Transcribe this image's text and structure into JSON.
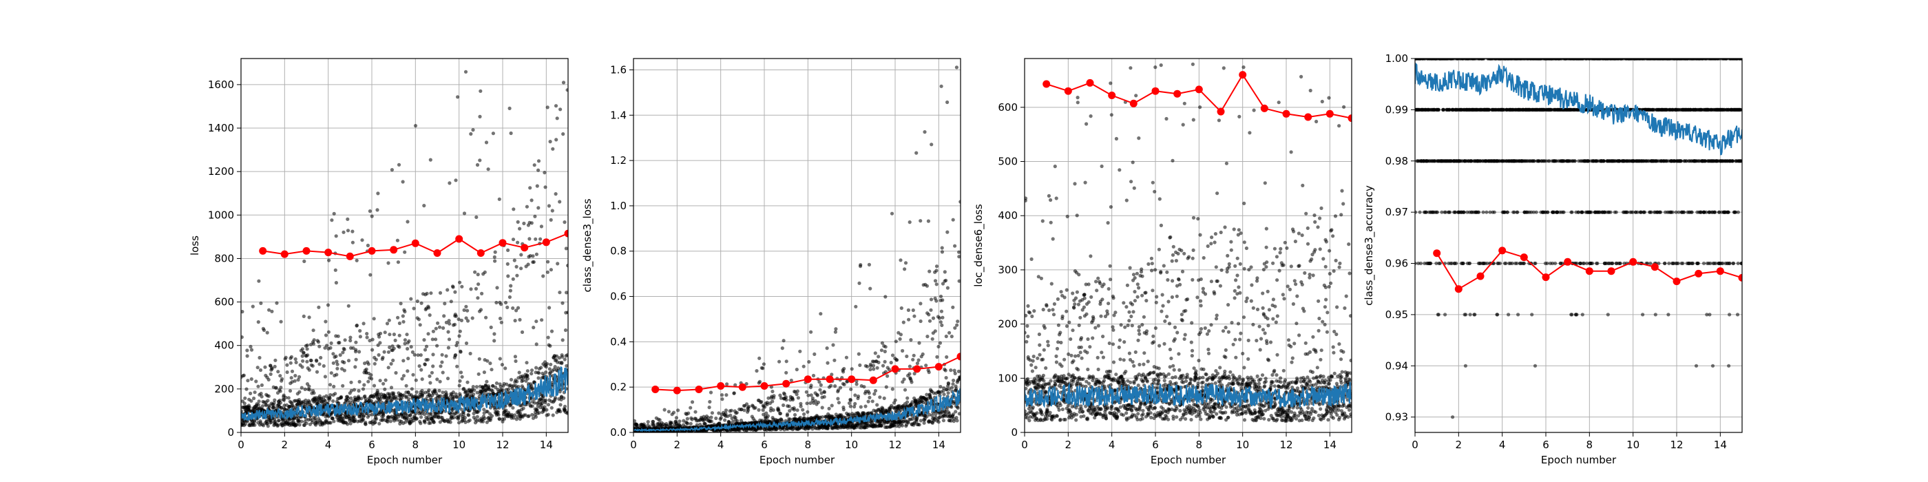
{
  "figure": {
    "colors": {
      "scatter": "#000000",
      "smoothed": "#1f77b4",
      "epoch_mean": "#ff0000",
      "grid": "#b0b0b0"
    }
  },
  "chart_data": [
    {
      "type": "scatter",
      "title": "",
      "xlabel": "Epoch number",
      "ylabel": "loss",
      "xlim": [
        0,
        15
      ],
      "ylim": [
        0,
        1720
      ],
      "xticks": [
        0,
        2,
        4,
        6,
        8,
        10,
        12,
        14
      ],
      "yticks": [
        0,
        200,
        400,
        600,
        800,
        1000,
        1200,
        1400,
        1600
      ],
      "grid": true,
      "series": [
        {
          "kind": "batch-scatter",
          "description_values": "dense cloud of per-batch values, mostly 20–300, with outliers rising to ~1630 near epoch 15"
        },
        {
          "kind": "smoothed-line",
          "x": [
            0,
            1,
            2,
            3,
            4,
            5,
            6,
            7,
            8,
            9,
            10,
            11,
            12,
            13,
            14,
            15
          ],
          "y": [
            70,
            80,
            85,
            95,
            100,
            100,
            105,
            110,
            115,
            120,
            120,
            130,
            140,
            160,
            200,
            240
          ]
        },
        {
          "kind": "epoch-mean",
          "x": [
            1,
            2,
            3,
            4,
            5,
            6,
            7,
            8,
            9,
            10,
            11,
            12,
            13,
            14,
            15
          ],
          "y": [
            835,
            820,
            835,
            828,
            810,
            835,
            840,
            870,
            825,
            890,
            825,
            872,
            850,
            875,
            915
          ]
        }
      ]
    },
    {
      "type": "scatter",
      "title": "",
      "xlabel": "Epoch number",
      "ylabel": "class_dense3_loss",
      "xlim": [
        0,
        15
      ],
      "ylim": [
        0,
        1.65
      ],
      "xticks": [
        0,
        2,
        4,
        6,
        8,
        10,
        12,
        14
      ],
      "yticks": [
        0.0,
        0.2,
        0.4,
        0.6,
        0.8,
        1.0,
        1.2,
        1.4,
        1.6
      ],
      "ytick_labels": [
        "0.0",
        "0.2",
        "0.4",
        "0.6",
        "0.8",
        "1.0",
        "1.2",
        "1.4",
        "1.6"
      ],
      "grid": true,
      "series": [
        {
          "kind": "batch-scatter"
        },
        {
          "kind": "smoothed-line",
          "x": [
            0,
            1,
            2,
            3,
            4,
            5,
            6,
            7,
            8,
            9,
            10,
            11,
            12,
            13,
            14,
            15
          ],
          "y": [
            0.01,
            0.01,
            0.012,
            0.015,
            0.02,
            0.025,
            0.03,
            0.035,
            0.04,
            0.045,
            0.05,
            0.06,
            0.07,
            0.09,
            0.12,
            0.15
          ]
        },
        {
          "kind": "epoch-mean",
          "x": [
            1,
            2,
            3,
            4,
            5,
            6,
            7,
            8,
            9,
            10,
            11,
            12,
            13,
            14,
            15
          ],
          "y": [
            0.19,
            0.185,
            0.19,
            0.205,
            0.2,
            0.205,
            0.215,
            0.235,
            0.235,
            0.235,
            0.23,
            0.28,
            0.28,
            0.29,
            0.335
          ]
        }
      ]
    },
    {
      "type": "scatter",
      "title": "",
      "xlabel": "Epoch number",
      "ylabel": "loc_dense6_loss",
      "xlim": [
        0,
        15
      ],
      "ylim": [
        0,
        690
      ],
      "xticks": [
        0,
        2,
        4,
        6,
        8,
        10,
        12,
        14
      ],
      "yticks": [
        0,
        100,
        200,
        300,
        400,
        500,
        600
      ],
      "grid": true,
      "series": [
        {
          "kind": "batch-scatter"
        },
        {
          "kind": "smoothed-line",
          "x": [
            0,
            1,
            2,
            3,
            4,
            5,
            6,
            7,
            8,
            9,
            10,
            11,
            12,
            13,
            14,
            15
          ],
          "y": [
            60,
            62,
            65,
            63,
            66,
            64,
            68,
            65,
            67,
            66,
            64,
            62,
            60,
            63,
            65,
            70
          ]
        },
        {
          "kind": "epoch-mean",
          "x": [
            1,
            2,
            3,
            4,
            5,
            6,
            7,
            8,
            9,
            10,
            11,
            12,
            13,
            14,
            15
          ],
          "y": [
            643,
            630,
            645,
            622,
            607,
            630,
            625,
            633,
            592,
            660,
            598,
            588,
            582,
            588,
            580
          ]
        }
      ]
    },
    {
      "type": "scatter",
      "title": "",
      "xlabel": "Epoch number",
      "ylabel": "class_dense3_accuracy",
      "xlim": [
        0,
        15
      ],
      "ylim": [
        0.927,
        1.0
      ],
      "xticks": [
        0,
        2,
        4,
        6,
        8,
        10,
        12,
        14
      ],
      "yticks": [
        0.93,
        0.94,
        0.95,
        0.96,
        0.97,
        0.98,
        0.99,
        1.0
      ],
      "ytick_labels": [
        "0.93",
        "0.94",
        "0.95",
        "0.96",
        "0.97",
        "0.98",
        "0.99",
        "1.00"
      ],
      "grid": true,
      "series": [
        {
          "kind": "batch-scatter",
          "levels": [
            1.0,
            0.99,
            0.98,
            0.97,
            0.96,
            0.95,
            0.94,
            0.93
          ]
        },
        {
          "kind": "smoothed-line",
          "x": [
            0,
            1,
            2,
            3,
            4,
            5,
            6,
            7,
            8,
            9,
            10,
            11,
            12,
            13,
            14,
            15
          ],
          "y": [
            0.997,
            0.995,
            0.996,
            0.995,
            0.997,
            0.994,
            0.993,
            0.992,
            0.991,
            0.989,
            0.99,
            0.987,
            0.986,
            0.985,
            0.983,
            0.986
          ]
        },
        {
          "kind": "epoch-mean",
          "x": [
            1,
            2,
            3,
            4,
            5,
            6,
            7,
            8,
            9,
            10,
            11,
            12,
            13,
            14,
            15
          ],
          "y": [
            0.962,
            0.955,
            0.9575,
            0.9625,
            0.9612,
            0.9573,
            0.9603,
            0.9585,
            0.9585,
            0.9603,
            0.9593,
            0.9565,
            0.958,
            0.9585,
            0.9572
          ]
        }
      ]
    }
  ]
}
